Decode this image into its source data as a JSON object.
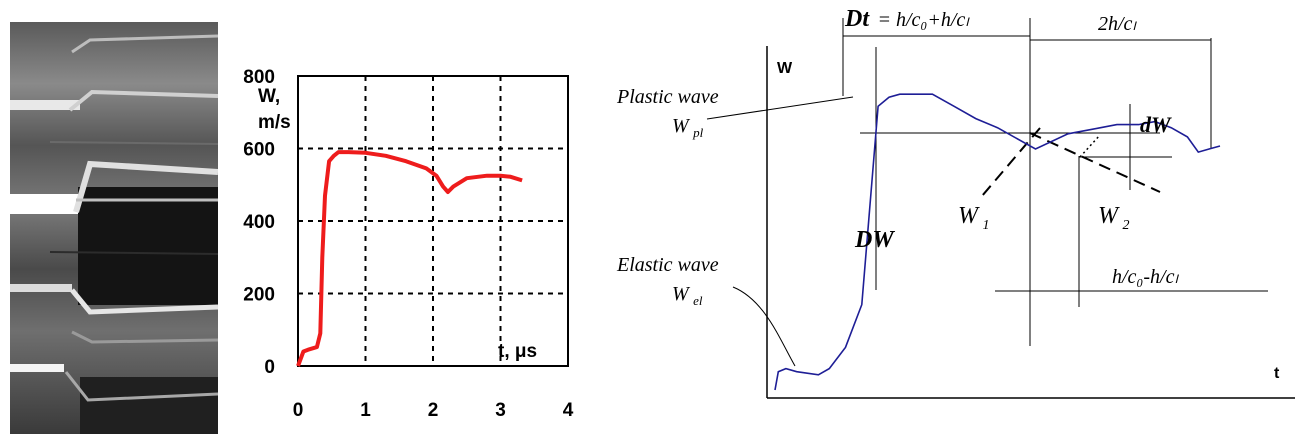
{
  "streak_image": {
    "description_icon": "streak-camera-image"
  },
  "chart_data": [
    {
      "type": "line",
      "title": "",
      "ylabel_lines": [
        "W,",
        "m/s"
      ],
      "xlabel": "t, μs",
      "xlim": [
        0,
        4
      ],
      "ylim": [
        0,
        800
      ],
      "x_ticks": [
        "0",
        "1",
        "2",
        "3",
        "4"
      ],
      "y_ticks": [
        "0",
        "200",
        "400",
        "600",
        "800"
      ],
      "grid": "dashed",
      "color": "#ee1c1c",
      "series": [
        {
          "x": [
            0.0,
            0.08,
            0.15,
            0.28,
            0.33,
            0.36,
            0.4,
            0.46,
            0.53,
            0.6,
            0.75,
            1.0,
            1.3,
            1.6,
            1.9,
            2.05,
            2.15,
            2.22,
            2.3,
            2.5,
            2.8,
            3.0,
            3.15,
            3.32
          ],
          "y": [
            0,
            40,
            45,
            52,
            90,
            300,
            470,
            565,
            580,
            590,
            590,
            588,
            580,
            565,
            545,
            525,
            495,
            480,
            495,
            518,
            525,
            525,
            522,
            512
          ]
        }
      ]
    },
    {
      "type": "line",
      "title": "",
      "ylabel": "W",
      "xlabel": "t",
      "color": "#1e1e96",
      "series": [
        {
          "x": [
            0,
            0.6,
            2,
            4,
            8,
            10,
            13,
            16,
            19,
            21,
            23,
            26,
            29,
            33,
            37,
            41,
            48,
            54,
            60,
            63,
            67,
            70,
            73,
            76,
            78,
            80,
            82
          ],
          "y": [
            0,
            6,
            7,
            6,
            5,
            7,
            14,
            28,
            93,
            96,
            97,
            97,
            97,
            93,
            89,
            86,
            79,
            84,
            86,
            87,
            87,
            88,
            86,
            83,
            78,
            79,
            80
          ]
        }
      ],
      "labels": {
        "delta_t": "Dt",
        "delta_t_rest": "= h/c₀+h/cₗ",
        "two_h": "2h/cₗ",
        "plastic_wave": "Plastic wave",
        "w_pl_main": "W",
        "w_pl_sub": "pl",
        "delta_w_big": "DW",
        "w1_main": "W",
        "w1_sub": "1",
        "w2_main": "W",
        "w2_sub": "2",
        "dw_small": "dW",
        "elastic_wave": "Elastic wave",
        "w_el_main": "W",
        "w_el_sub": "el",
        "diff_label": "h/c₀-h/cₗ"
      }
    }
  ]
}
